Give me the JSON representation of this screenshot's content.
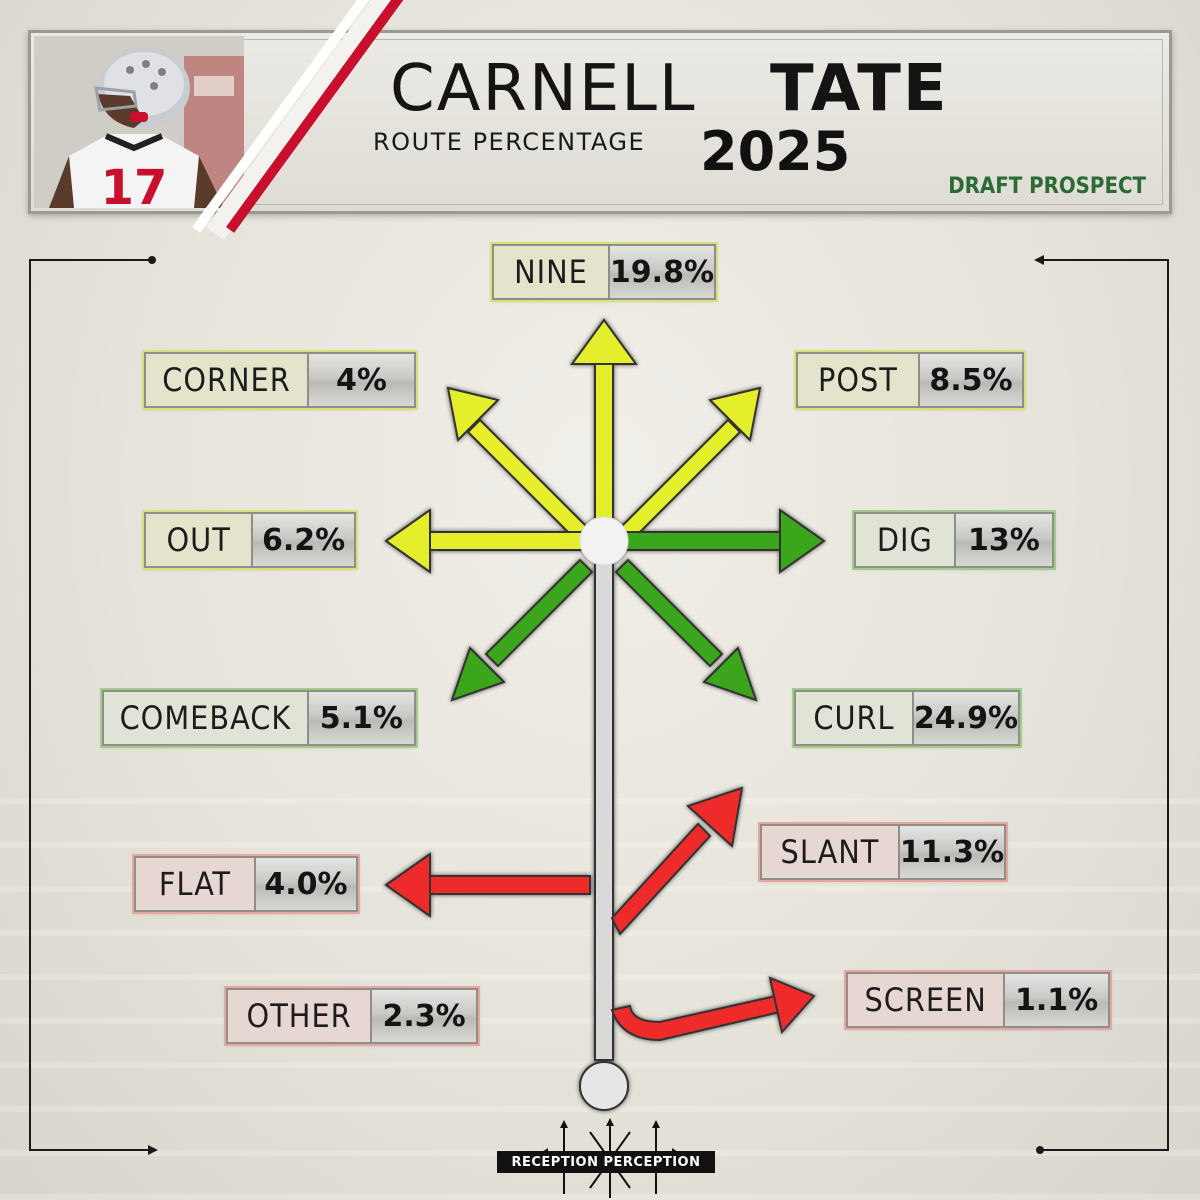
{
  "header": {
    "first_name": "CARNELL",
    "last_name": "TATE",
    "subtitle": "ROUTE PERCENTAGE",
    "year": "2025",
    "tag": "DRAFT PROSPECT",
    "jersey_number": "17"
  },
  "routes": [
    {
      "id": "nine",
      "name": "NINE",
      "value": "19.8%",
      "color": "yellow"
    },
    {
      "id": "corner",
      "name": "CORNER",
      "value": "4%",
      "color": "yellow"
    },
    {
      "id": "post",
      "name": "POST",
      "value": "8.5%",
      "color": "yellow"
    },
    {
      "id": "out",
      "name": "OUT",
      "value": "6.2%",
      "color": "yellow"
    },
    {
      "id": "dig",
      "name": "DIG",
      "value": "13%",
      "color": "green"
    },
    {
      "id": "comeback",
      "name": "COMEBACK",
      "value": "5.1%",
      "color": "green"
    },
    {
      "id": "curl",
      "name": "CURL",
      "value": "24.9%",
      "color": "green"
    },
    {
      "id": "slant",
      "name": "SLANT",
      "value": "11.3%",
      "color": "red"
    },
    {
      "id": "flat",
      "name": "FLAT",
      "value": "4.0%",
      "color": "red"
    },
    {
      "id": "screen",
      "name": "SCREEN",
      "value": "1.1%",
      "color": "red"
    },
    {
      "id": "other",
      "name": "OTHER",
      "value": "2.3%",
      "color": "red"
    }
  ],
  "colors": {
    "yellow_arrow": "#e4ee2a",
    "green_arrow": "#3aa61e",
    "red_arrow": "#ef2b2b",
    "stem": "#d6d6d6",
    "ohio_red": "#c8102e"
  },
  "icons": {
    "logo": "route-tree-logo-icon",
    "helmet": "ohio-state-helmet-icon"
  },
  "footer": {
    "brand": "RECEPTION PERCEPTION"
  }
}
